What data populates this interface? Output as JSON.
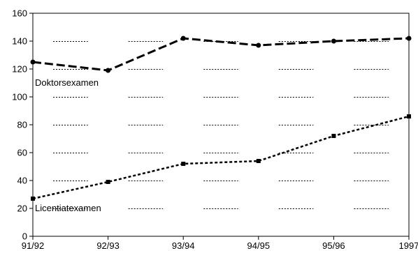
{
  "chart_data": {
    "type": "line",
    "x_categories": [
      "91/92",
      "92/93",
      "93/94",
      "94/95",
      "95/96",
      "1997"
    ],
    "ylim": [
      0,
      160
    ],
    "y_ticks": [
      0,
      20,
      40,
      60,
      80,
      100,
      120,
      140,
      160
    ],
    "grid": "horizontal dashed",
    "series": [
      {
        "name": "Doktorsexamen",
        "line_style": "long-dash",
        "points": [
          {
            "x": "91/92",
            "y": 125
          },
          {
            "x": "92/93",
            "y": 119
          },
          {
            "x": "93/94",
            "y": 142
          },
          {
            "x": "94/95",
            "y": 137
          },
          {
            "x": "95/96",
            "y": 140
          },
          {
            "x": "1997",
            "y": 142
          }
        ]
      },
      {
        "name": "Licentiatexamen",
        "line_style": "short-dash",
        "points": [
          {
            "x": "91/92",
            "y": 27
          },
          {
            "x": "92/93",
            "y": 39
          },
          {
            "x": "93/94",
            "y": 52
          },
          {
            "x": "94/95",
            "y": 54
          },
          {
            "x": "95/96",
            "y": 72
          },
          {
            "x": "1997",
            "y": 86
          }
        ]
      }
    ]
  }
}
